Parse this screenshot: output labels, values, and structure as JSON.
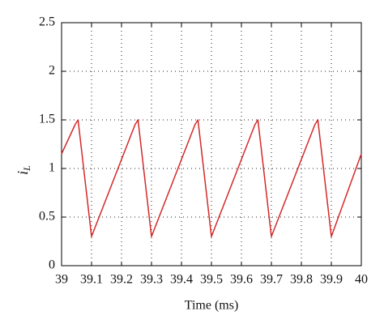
{
  "chart_data": {
    "type": "line",
    "x_label": "Time (ms)",
    "y_label": {
      "main": "i",
      "sub": "L"
    },
    "x": [
      39,
      39.045,
      39.055,
      39.1,
      39.245,
      39.255,
      39.3,
      39.445,
      39.455,
      39.5,
      39.645,
      39.655,
      39.7,
      39.845,
      39.855,
      39.9,
      40
    ],
    "values": [
      1.15,
      1.45,
      1.5,
      0.3,
      1.45,
      1.5,
      0.3,
      1.45,
      1.5,
      0.3,
      1.45,
      1.5,
      0.3,
      1.45,
      1.5,
      0.3,
      1.15
    ],
    "color": "#d42a2a",
    "xlim": [
      39,
      40
    ],
    "xticks": [
      39,
      39.1,
      39.2,
      39.3,
      39.4,
      39.5,
      39.6,
      39.7,
      39.8,
      39.9,
      40
    ],
    "ylim": [
      0,
      2.5
    ],
    "yticks": [
      0,
      0.5,
      1,
      1.5,
      2,
      2.5
    ],
    "grid": true
  }
}
